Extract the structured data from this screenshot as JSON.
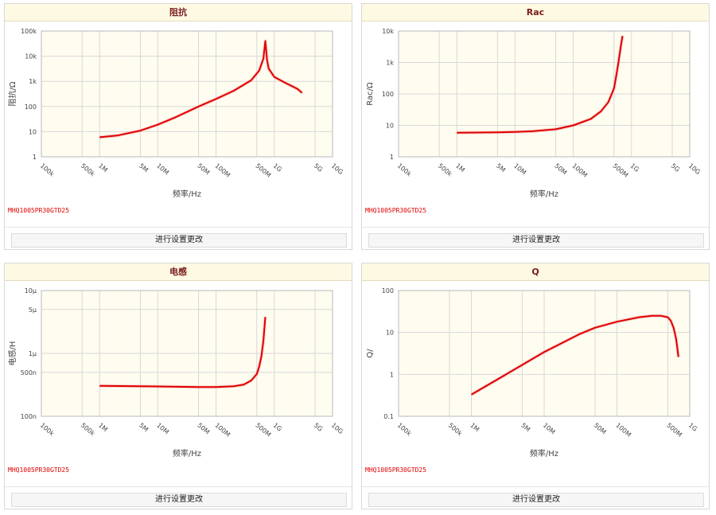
{
  "part_number": "MHQ1005PR30GTD25",
  "button_label": "进行设置更改",
  "x_axis_label": "频率/Hz",
  "colors": {
    "curve": "#e00000",
    "plot_bg": "#fffcf0",
    "grid": "#d8d8d8",
    "header_bg": "#fdf9e3",
    "title": "#7a1c1c"
  },
  "chart_data": [
    {
      "title": "阻抗",
      "type": "line",
      "ylabel": "阻抗/Ω",
      "xscale": "log",
      "yscale": "log",
      "xlim": [
        100000,
        10000000000
      ],
      "ylim": [
        1,
        100000
      ],
      "x_ticks": [
        [
          "100k",
          100000
        ],
        [
          "500k",
          500000
        ],
        [
          "1M",
          1000000
        ],
        [
          "5M",
          5000000
        ],
        [
          "10M",
          10000000
        ],
        [
          "50M",
          50000000
        ],
        [
          "100M",
          100000000
        ],
        [
          "500M",
          500000000
        ],
        [
          "1G",
          1000000000
        ],
        [
          "5G",
          5000000000
        ],
        [
          "10G",
          10000000000
        ]
      ],
      "y_ticks": [
        [
          "1",
          1
        ],
        [
          "10",
          10
        ],
        [
          "100",
          100
        ],
        [
          "1k",
          1000
        ],
        [
          "10k",
          10000
        ],
        [
          "100k",
          100000
        ]
      ],
      "x": [
        1000000,
        2000000,
        5000000,
        10000000,
        20000000,
        50000000,
        100000000,
        200000000,
        400000000,
        550000000,
        650000000,
        700000000,
        750000000,
        800000000,
        1000000000,
        1500000000,
        2500000000,
        3000000000
      ],
      "y": [
        6,
        7,
        11,
        19,
        37,
        100,
        200,
        420,
        1100,
        2700,
        8000,
        40000,
        7000,
        3200,
        1500,
        900,
        500,
        350
      ]
    },
    {
      "title": "Rac",
      "type": "line",
      "ylabel": "Rac/Ω",
      "xscale": "log",
      "yscale": "log",
      "xlim": [
        100000,
        10000000000
      ],
      "ylim": [
        1,
        10000
      ],
      "x_ticks": [
        [
          "100k",
          100000
        ],
        [
          "500k",
          500000
        ],
        [
          "1M",
          1000000
        ],
        [
          "5M",
          5000000
        ],
        [
          "10M",
          10000000
        ],
        [
          "50M",
          50000000
        ],
        [
          "100M",
          100000000
        ],
        [
          "500M",
          500000000
        ],
        [
          "1G",
          1000000000
        ],
        [
          "5G",
          5000000000
        ],
        [
          "10G",
          10000000000
        ]
      ],
      "y_ticks": [
        [
          "1",
          1
        ],
        [
          "10",
          10
        ],
        [
          "100",
          100
        ],
        [
          "1k",
          1000
        ],
        [
          "10k",
          10000
        ]
      ],
      "x": [
        1000000,
        5000000,
        10000000,
        20000000,
        50000000,
        100000000,
        200000000,
        300000000,
        400000000,
        500000000,
        550000000,
        600000000,
        650000000,
        700000000
      ],
      "y": [
        5.8,
        6,
        6.2,
        6.5,
        7.5,
        10,
        16,
        28,
        55,
        150,
        400,
        1100,
        3000,
        7000
      ]
    },
    {
      "title": "电感",
      "type": "line",
      "ylabel": "电感/H",
      "xscale": "log",
      "yscale": "log",
      "xlim": [
        100000,
        10000000000
      ],
      "ylim": [
        1e-07,
        1e-05
      ],
      "x_ticks": [
        [
          "100k",
          100000
        ],
        [
          "500k",
          500000
        ],
        [
          "1M",
          1000000
        ],
        [
          "5M",
          5000000
        ],
        [
          "10M",
          10000000
        ],
        [
          "50M",
          50000000
        ],
        [
          "100M",
          100000000
        ],
        [
          "500M",
          500000000
        ],
        [
          "1G",
          1000000000
        ],
        [
          "5G",
          5000000000
        ],
        [
          "10G",
          10000000000
        ]
      ],
      "y_ticks": [
        [
          "100n",
          1e-07
        ],
        [
          "500n",
          5e-07
        ],
        [
          "1μ",
          1e-06
        ],
        [
          "5μ",
          5e-06
        ],
        [
          "10μ",
          1e-05
        ]
      ],
      "x": [
        1000000,
        5000000,
        10000000,
        50000000,
        100000000,
        200000000,
        300000000,
        400000000,
        500000000,
        550000000,
        600000000,
        650000000,
        700000000
      ],
      "y": [
        3.05e-07,
        3e-07,
        2.98e-07,
        2.92e-07,
        2.92e-07,
        3e-07,
        3.2e-07,
        3.7e-07,
        4.7e-07,
        6.2e-07,
        9e-07,
        1.6e-06,
        3.8e-06
      ]
    },
    {
      "title": "Q",
      "type": "line",
      "ylabel": "Q/",
      "xscale": "log",
      "yscale": "log",
      "xlim": [
        100000,
        1000000000
      ],
      "ylim": [
        0.1,
        100
      ],
      "x_ticks": [
        [
          "100k",
          100000
        ],
        [
          "500k",
          500000
        ],
        [
          "1M",
          1000000
        ],
        [
          "5M",
          5000000
        ],
        [
          "10M",
          10000000
        ],
        [
          "50M",
          50000000
        ],
        [
          "100M",
          100000000
        ],
        [
          "500M",
          500000000
        ],
        [
          "1G",
          1000000000
        ]
      ],
      "y_ticks": [
        [
          "0.1",
          0.1
        ],
        [
          "1",
          1
        ],
        [
          "10",
          10
        ],
        [
          "100",
          100
        ]
      ],
      "x": [
        1000000,
        3000000,
        10000000,
        30000000,
        50000000,
        100000000,
        200000000,
        300000000,
        400000000,
        500000000,
        550000000,
        600000000,
        650000000,
        700000000
      ],
      "y": [
        0.33,
        1,
        3.4,
        9,
        13,
        18,
        23,
        25,
        25,
        23,
        19,
        13,
        7,
        2.6
      ]
    }
  ]
}
